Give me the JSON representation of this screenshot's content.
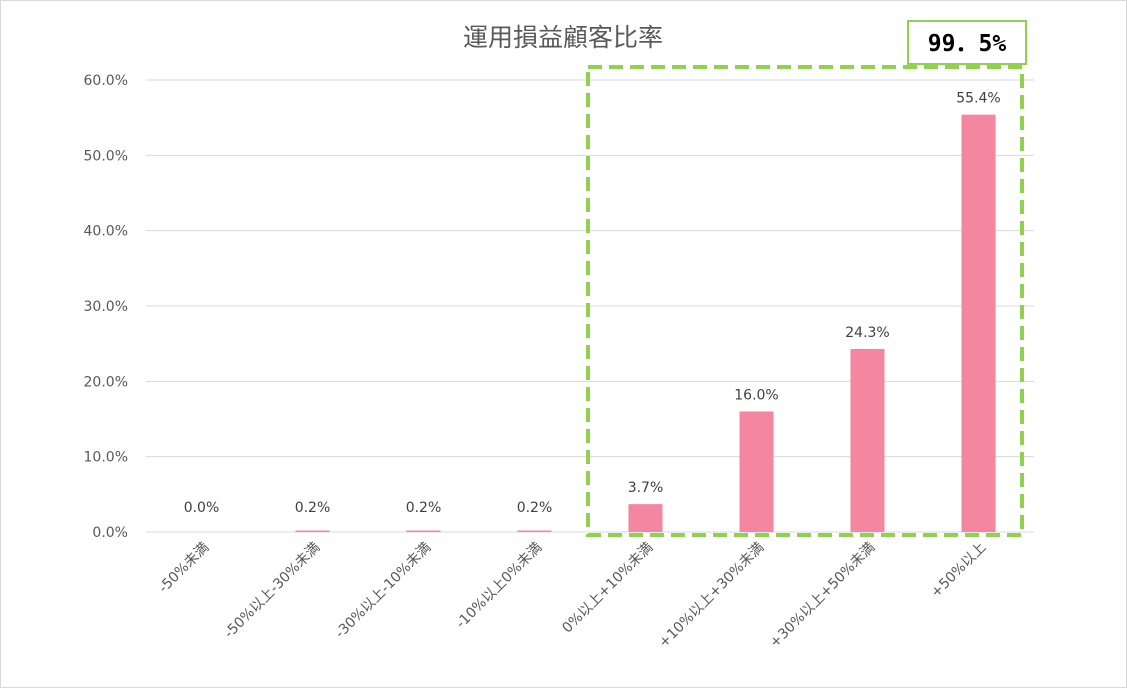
{
  "chart_data": {
    "type": "bar",
    "title": "運用損益顧客比率",
    "categories": [
      "-50%未満",
      "-50%以上-30%未満",
      "-30%以上-10%未満",
      "-10%以上0%未満",
      "0%以上+10%未満",
      "+10%以上+30%未満",
      "+30%以上+50%未満",
      "+50%以上"
    ],
    "values": [
      0.0,
      0.2,
      0.2,
      0.2,
      3.7,
      16.0,
      24.3,
      55.4
    ],
    "data_labels": [
      "0.0%",
      "0.2%",
      "0.2%",
      "0.2%",
      "3.7%",
      "16.0%",
      "24.3%",
      "55.4%"
    ],
    "ylim": [
      0,
      60
    ],
    "yticks": [
      0,
      10,
      20,
      30,
      40,
      50,
      60
    ],
    "ytick_labels": [
      "0.0%",
      "10.0%",
      "20.0%",
      "30.0%",
      "40.0%",
      "50.0%",
      "60.0%"
    ],
    "xlabel": "",
    "ylabel": "",
    "grid": true,
    "legend": "none",
    "bar_color": "#f4869f",
    "highlight": {
      "label": "99．5%",
      "from_category": "0%以上+10%未満",
      "to_category": "+50%以上",
      "border_color": "#92d050"
    }
  }
}
